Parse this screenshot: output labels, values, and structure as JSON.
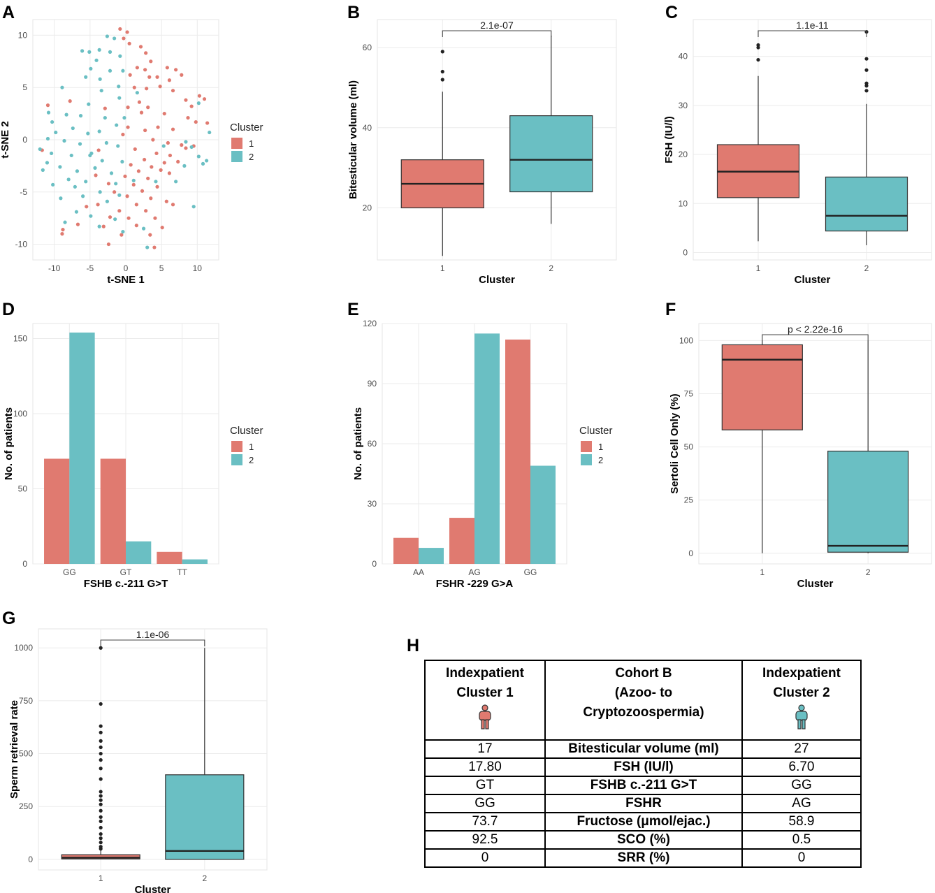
{
  "colors": {
    "cluster1": "#E07A70",
    "cluster2": "#6ABFC3",
    "grid": "#EBEBEB",
    "axis": "#4D4D4D"
  },
  "panel_letters": [
    "A",
    "B",
    "C",
    "D",
    "E",
    "F",
    "G",
    "H"
  ],
  "chart_data": [
    {
      "panel": "A",
      "type": "scatter",
      "xlabel": "t-SNE 1",
      "ylabel": "t-SNE 2",
      "xlim": [
        -13,
        13
      ],
      "ylim": [
        -11.5,
        11.5
      ],
      "xticks": [
        -10,
        -5,
        0,
        5,
        10
      ],
      "yticks": [
        -10,
        -5,
        0,
        5,
        10
      ],
      "legend": {
        "title": "Cluster",
        "entries": [
          "1",
          "2"
        ],
        "position": "right"
      },
      "series": [
        {
          "name": "1",
          "points": [
            [
              -0.8,
              10.6
            ],
            [
              0.2,
              10.3
            ],
            [
              -0.3,
              9.7
            ],
            [
              0.5,
              9.2
            ],
            [
              2.1,
              8.9
            ],
            [
              2.8,
              8.3
            ],
            [
              3.5,
              7.5
            ],
            [
              5.8,
              6.9
            ],
            [
              7.0,
              6.7
            ],
            [
              7.8,
              6.2
            ],
            [
              4.4,
              6.0
            ],
            [
              1.6,
              6.9
            ],
            [
              2.7,
              6.7
            ],
            [
              3.3,
              6.0
            ],
            [
              0.6,
              6.2
            ],
            [
              6.1,
              5.7
            ],
            [
              4.8,
              5.1
            ],
            [
              2.9,
              4.9
            ],
            [
              1.2,
              5.0
            ],
            [
              6.6,
              4.7
            ],
            [
              10.3,
              4.2
            ],
            [
              11.0,
              3.9
            ],
            [
              8.4,
              3.8
            ],
            [
              9.2,
              3.2
            ],
            [
              3.1,
              3.1
            ],
            [
              1.9,
              3.6
            ],
            [
              0.3,
              3.1
            ],
            [
              -2.9,
              3.0
            ],
            [
              -7.8,
              3.7
            ],
            [
              -10.9,
              3.3
            ],
            [
              5.4,
              2.5
            ],
            [
              8.7,
              2.1
            ],
            [
              9.8,
              1.7
            ],
            [
              4.5,
              1.2
            ],
            [
              0.3,
              1.2
            ],
            [
              6.6,
              1.0
            ],
            [
              2.7,
              0.9
            ],
            [
              -0.4,
              0.5
            ],
            [
              3.8,
              0.0
            ],
            [
              5.9,
              -0.3
            ],
            [
              7.8,
              -0.5
            ],
            [
              9.5,
              -0.6
            ],
            [
              1.3,
              -0.9
            ],
            [
              -3.8,
              -1.0
            ],
            [
              4.3,
              -1.3
            ],
            [
              6.2,
              -1.5
            ],
            [
              2.6,
              -1.9
            ],
            [
              5.4,
              -2.2
            ],
            [
              0.7,
              -2.4
            ],
            [
              3.6,
              -2.6
            ],
            [
              4.9,
              -2.9
            ],
            [
              1.8,
              -3.0
            ],
            [
              6.1,
              -3.2
            ],
            [
              -0.1,
              -3.5
            ],
            [
              3.1,
              -3.7
            ],
            [
              -2.4,
              -4.2
            ],
            [
              1.1,
              -4.3
            ],
            [
              4.4,
              -4.5
            ],
            [
              2.3,
              -4.9
            ],
            [
              -1.6,
              -5.0
            ],
            [
              0.2,
              -5.4
            ],
            [
              3.5,
              -5.6
            ],
            [
              5.7,
              -5.9
            ],
            [
              -3.9,
              -6.2
            ],
            [
              1.5,
              -6.2
            ],
            [
              6.6,
              -6.2
            ],
            [
              -0.9,
              -6.8
            ],
            [
              2.8,
              -6.8
            ],
            [
              -2.2,
              -7.4
            ],
            [
              0.4,
              -7.5
            ],
            [
              4.1,
              -7.5
            ],
            [
              -6.7,
              -8.1
            ],
            [
              -3.1,
              -8.3
            ],
            [
              1.5,
              -8.2
            ],
            [
              5.1,
              -8.4
            ],
            [
              -8.8,
              -8.6
            ],
            [
              -0.6,
              -9.1
            ],
            [
              3.4,
              -9.1
            ],
            [
              -2.4,
              -10.0
            ],
            [
              4.0,
              -10.3
            ],
            [
              -11.7,
              -1.0
            ],
            [
              -4.2,
              -3.4
            ],
            [
              -5.5,
              -6.4
            ],
            [
              -8.9,
              -9.0
            ],
            [
              8.4,
              -0.8
            ],
            [
              11.4,
              1.6
            ],
            [
              7.3,
              -2.1
            ],
            [
              2.2,
              2.6
            ]
          ]
        },
        {
          "name": "2",
          "points": [
            [
              -2.6,
              9.9
            ],
            [
              -1.6,
              9.7
            ],
            [
              -3.7,
              8.6
            ],
            [
              -6.1,
              8.5
            ],
            [
              -5.1,
              8.4
            ],
            [
              -2.2,
              8.4
            ],
            [
              -0.8,
              8.0
            ],
            [
              -4.1,
              7.6
            ],
            [
              -4.9,
              6.8
            ],
            [
              -2.2,
              6.6
            ],
            [
              -0.4,
              6.6
            ],
            [
              -5.6,
              6.0
            ],
            [
              -3.6,
              5.8
            ],
            [
              -1.0,
              5.1
            ],
            [
              -8.9,
              5.0
            ],
            [
              -3.4,
              4.7
            ],
            [
              1.6,
              4.5
            ],
            [
              -0.9,
              4.0
            ],
            [
              -5.2,
              3.4
            ],
            [
              10.2,
              3.5
            ],
            [
              -10.8,
              2.6
            ],
            [
              -8.3,
              2.4
            ],
            [
              -6.3,
              2.3
            ],
            [
              -2.9,
              2.1
            ],
            [
              -0.2,
              2.1
            ],
            [
              -10.3,
              1.7
            ],
            [
              -7.4,
              1.1
            ],
            [
              -1.3,
              1.4
            ],
            [
              -9.8,
              0.7
            ],
            [
              -5.3,
              0.6
            ],
            [
              -3.7,
              0.8
            ],
            [
              11.7,
              0.7
            ],
            [
              -10.9,
              0.1
            ],
            [
              -8.6,
              -0.1
            ],
            [
              -6.4,
              -0.4
            ],
            [
              -2.7,
              -0.3
            ],
            [
              -1.1,
              -0.6
            ],
            [
              8.4,
              -0.2
            ],
            [
              9.2,
              -0.7
            ],
            [
              -12.0,
              -0.9
            ],
            [
              -10.4,
              -1.3
            ],
            [
              -7.6,
              -1.5
            ],
            [
              -5.0,
              -1.5
            ],
            [
              -3.3,
              -2.0
            ],
            [
              -0.5,
              -2.1
            ],
            [
              10.2,
              -1.6
            ],
            [
              11.3,
              -2.0
            ],
            [
              -11.6,
              -2.9
            ],
            [
              -9.2,
              -2.6
            ],
            [
              -6.8,
              -3.0
            ],
            [
              -4.3,
              -2.7
            ],
            [
              -2.0,
              -3.2
            ],
            [
              8.2,
              -2.5
            ],
            [
              -8.0,
              -3.8
            ],
            [
              -5.6,
              -4.0
            ],
            [
              -1.4,
              -4.2
            ],
            [
              10.8,
              -2.3
            ],
            [
              -10.2,
              -4.3
            ],
            [
              -7.1,
              -4.5
            ],
            [
              -3.6,
              -5.0
            ],
            [
              -0.9,
              -5.3
            ],
            [
              7.0,
              -4.0
            ],
            [
              -9.1,
              -5.6
            ],
            [
              -6.0,
              -5.4
            ],
            [
              -2.6,
              -5.9
            ],
            [
              9.5,
              -6.4
            ],
            [
              -6.9,
              -6.9
            ],
            [
              -4.9,
              -7.3
            ],
            [
              -1.5,
              -7.6
            ],
            [
              -8.5,
              -7.9
            ],
            [
              -3.7,
              -8.3
            ],
            [
              -0.4,
              -8.8
            ],
            [
              3.0,
              -10.3
            ],
            [
              4.2,
              -4.0
            ],
            [
              -4.8,
              -1.3
            ],
            [
              5.3,
              -0.6
            ],
            [
              -11.0,
              -2.2
            ],
            [
              1.1,
              -3.9
            ],
            [
              2.5,
              -8.5
            ]
          ]
        }
      ]
    },
    {
      "panel": "B",
      "type": "box",
      "xlabel": "Cluster",
      "ylabel": "Bitesticular volume (ml)",
      "categories": [
        "1",
        "2"
      ],
      "ylim": [
        7,
        67
      ],
      "yticks": [
        20,
        40,
        60
      ],
      "annotation": "2.1e-07",
      "boxes": [
        {
          "name": "1",
          "min": 8,
          "q1": 20,
          "median": 26,
          "q3": 32,
          "max": 49,
          "outliers": [
            52,
            54,
            59
          ]
        },
        {
          "name": "2",
          "min": 16,
          "q1": 24,
          "median": 32,
          "q3": 43,
          "max": 63,
          "outliers": []
        }
      ]
    },
    {
      "panel": "C",
      "type": "box",
      "xlabel": "Cluster",
      "ylabel": "FSH (IU/l)",
      "categories": [
        "1",
        "2"
      ],
      "ylim": [
        -1.5,
        47.5
      ],
      "yticks": [
        0,
        10,
        20,
        30,
        40
      ],
      "annotation": "1.1e-11",
      "boxes": [
        {
          "name": "1",
          "min": 2.3,
          "q1": 11.2,
          "median": 16.5,
          "q3": 22.0,
          "max": 36.0,
          "outliers": [
            39.3,
            41.8,
            42.3
          ]
        },
        {
          "name": "2",
          "min": 1.5,
          "q1": 4.4,
          "median": 7.5,
          "q3": 15.4,
          "max": 30.3,
          "outliers": [
            33.0,
            34.0,
            34.5,
            37.2,
            39.5,
            45.0
          ]
        }
      ]
    },
    {
      "panel": "D",
      "type": "bar",
      "xlabel": "FSHB c.-211 G>T",
      "ylabel": "No. of patients",
      "categories": [
        "GG",
        "GT",
        "TT"
      ],
      "ylim": [
        0,
        160
      ],
      "yticks": [
        0,
        50,
        100,
        150
      ],
      "legend": {
        "title": "Cluster",
        "entries": [
          "1",
          "2"
        ],
        "position": "right"
      },
      "series": [
        {
          "name": "1",
          "values": [
            70,
            70,
            8
          ]
        },
        {
          "name": "2",
          "values": [
            154,
            15,
            3
          ]
        }
      ]
    },
    {
      "panel": "E",
      "type": "bar",
      "xlabel": "FSHR -229 G>A",
      "ylabel": "No. of patients",
      "categories": [
        "AA",
        "AG",
        "GG"
      ],
      "ylim": [
        0,
        120
      ],
      "yticks": [
        0,
        30,
        60,
        90,
        120
      ],
      "legend": {
        "title": "Cluster",
        "entries": [
          "1",
          "2"
        ],
        "position": "right"
      },
      "series": [
        {
          "name": "1",
          "values": [
            13,
            23,
            112
          ]
        },
        {
          "name": "2",
          "values": [
            8,
            115,
            49
          ]
        }
      ]
    },
    {
      "panel": "F",
      "type": "box",
      "xlabel": "Cluster",
      "ylabel": "Sertoli Cell Only (%)",
      "categories": [
        "1",
        "2"
      ],
      "ylim": [
        -5,
        108
      ],
      "yticks": [
        0,
        25,
        50,
        75,
        100
      ],
      "annotation": "p < 2.22e-16",
      "boxes": [
        {
          "name": "1",
          "min": 0,
          "q1": 58,
          "median": 91,
          "q3": 98,
          "max": 100,
          "outliers": []
        },
        {
          "name": "2",
          "min": 0,
          "q1": 0.5,
          "median": 3.5,
          "q3": 48,
          "max": 100,
          "outliers": []
        }
      ]
    },
    {
      "panel": "G",
      "type": "box",
      "xlabel": "Cluster",
      "ylabel": "Sperm retrieval rate",
      "categories": [
        "1",
        "2"
      ],
      "ylim": [
        -50,
        1090
      ],
      "yticks": [
        0,
        250,
        500,
        750,
        1000
      ],
      "annotation": "1.1e-06",
      "boxes": [
        {
          "name": "1",
          "min": 0,
          "q1": 2,
          "median": 8,
          "q3": 22,
          "max": 45,
          "outliers": [
            50,
            60,
            80,
            100,
            120,
            150,
            180,
            200,
            230,
            260,
            280,
            300,
            320,
            380,
            430,
            470,
            500,
            530,
            560,
            600,
            630,
            735,
            1000
          ]
        },
        {
          "name": "2",
          "min": 0,
          "q1": 0,
          "median": 40,
          "q3": 400,
          "max": 1000,
          "outliers": []
        }
      ]
    }
  ],
  "table_h": {
    "header": {
      "col1": [
        "Indexpatient",
        "Cluster 1"
      ],
      "col2": [
        "Cohort B",
        "(Azoo- to",
        "Cryptozoospermia)"
      ],
      "col3": [
        "Indexpatient",
        "Cluster 2"
      ]
    },
    "rows": [
      {
        "left": "17",
        "mid": "Bitesticular volume (ml)",
        "right": "27"
      },
      {
        "left": "17.80",
        "mid": "FSH (IU/l)",
        "right": "6.70"
      },
      {
        "left": "GT",
        "mid": "FSHB c.-211 G>T",
        "right": "GG"
      },
      {
        "left": "GG",
        "mid": "FSHR",
        "right": "AG"
      },
      {
        "left": "73.7",
        "mid": "Fructose (μmol/ejac.)",
        "right": "58.9"
      },
      {
        "left": "92.5",
        "mid": "SCO (%)",
        "right": "0.5"
      },
      {
        "left": "0",
        "mid": "SRR (%)",
        "right": "0"
      }
    ]
  }
}
